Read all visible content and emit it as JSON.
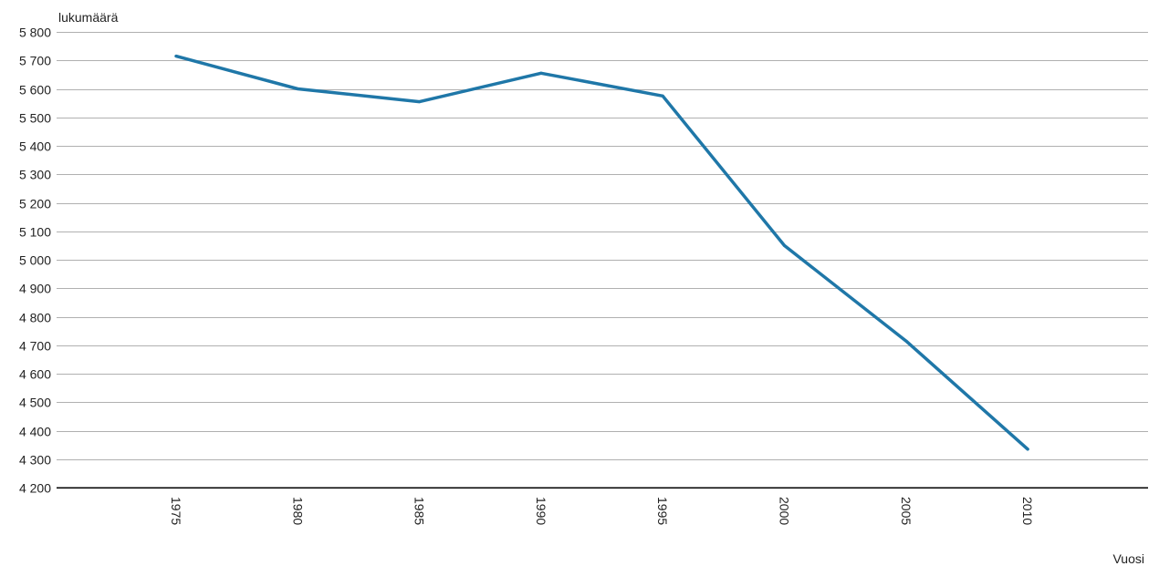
{
  "chart_data": {
    "type": "line",
    "title": "",
    "ylabel": "lukumäärä",
    "xlabel": "Vuosi",
    "x": [
      "1975",
      "1980",
      "1985",
      "1990",
      "1995",
      "2000",
      "2005",
      "2010"
    ],
    "series": [
      {
        "values": [
          5715,
          5600,
          5555,
          5655,
          5575,
          5050,
          4715,
          4335
        ],
        "color": "#1f77a8"
      }
    ],
    "ylim": [
      4200,
      5800
    ],
    "yticks": [
      4200,
      4300,
      4400,
      4500,
      4600,
      4700,
      4800,
      4900,
      5000,
      5100,
      5200,
      5300,
      5400,
      5500,
      5600,
      5700,
      5800
    ],
    "ytick_labels": [
      "4 200",
      "4 300",
      "4 400",
      "4 500",
      "4 600",
      "4 700",
      "4 800",
      "4 900",
      "5 000",
      "5 100",
      "5 200",
      "5 300",
      "5 400",
      "5 500",
      "5 600",
      "5 700",
      "5 800"
    ],
    "grid": true,
    "legend": "none",
    "colors": {
      "line": "#1f77a8",
      "grid": "#b0b0b0",
      "axis": "#000000",
      "text": "#222222"
    }
  }
}
